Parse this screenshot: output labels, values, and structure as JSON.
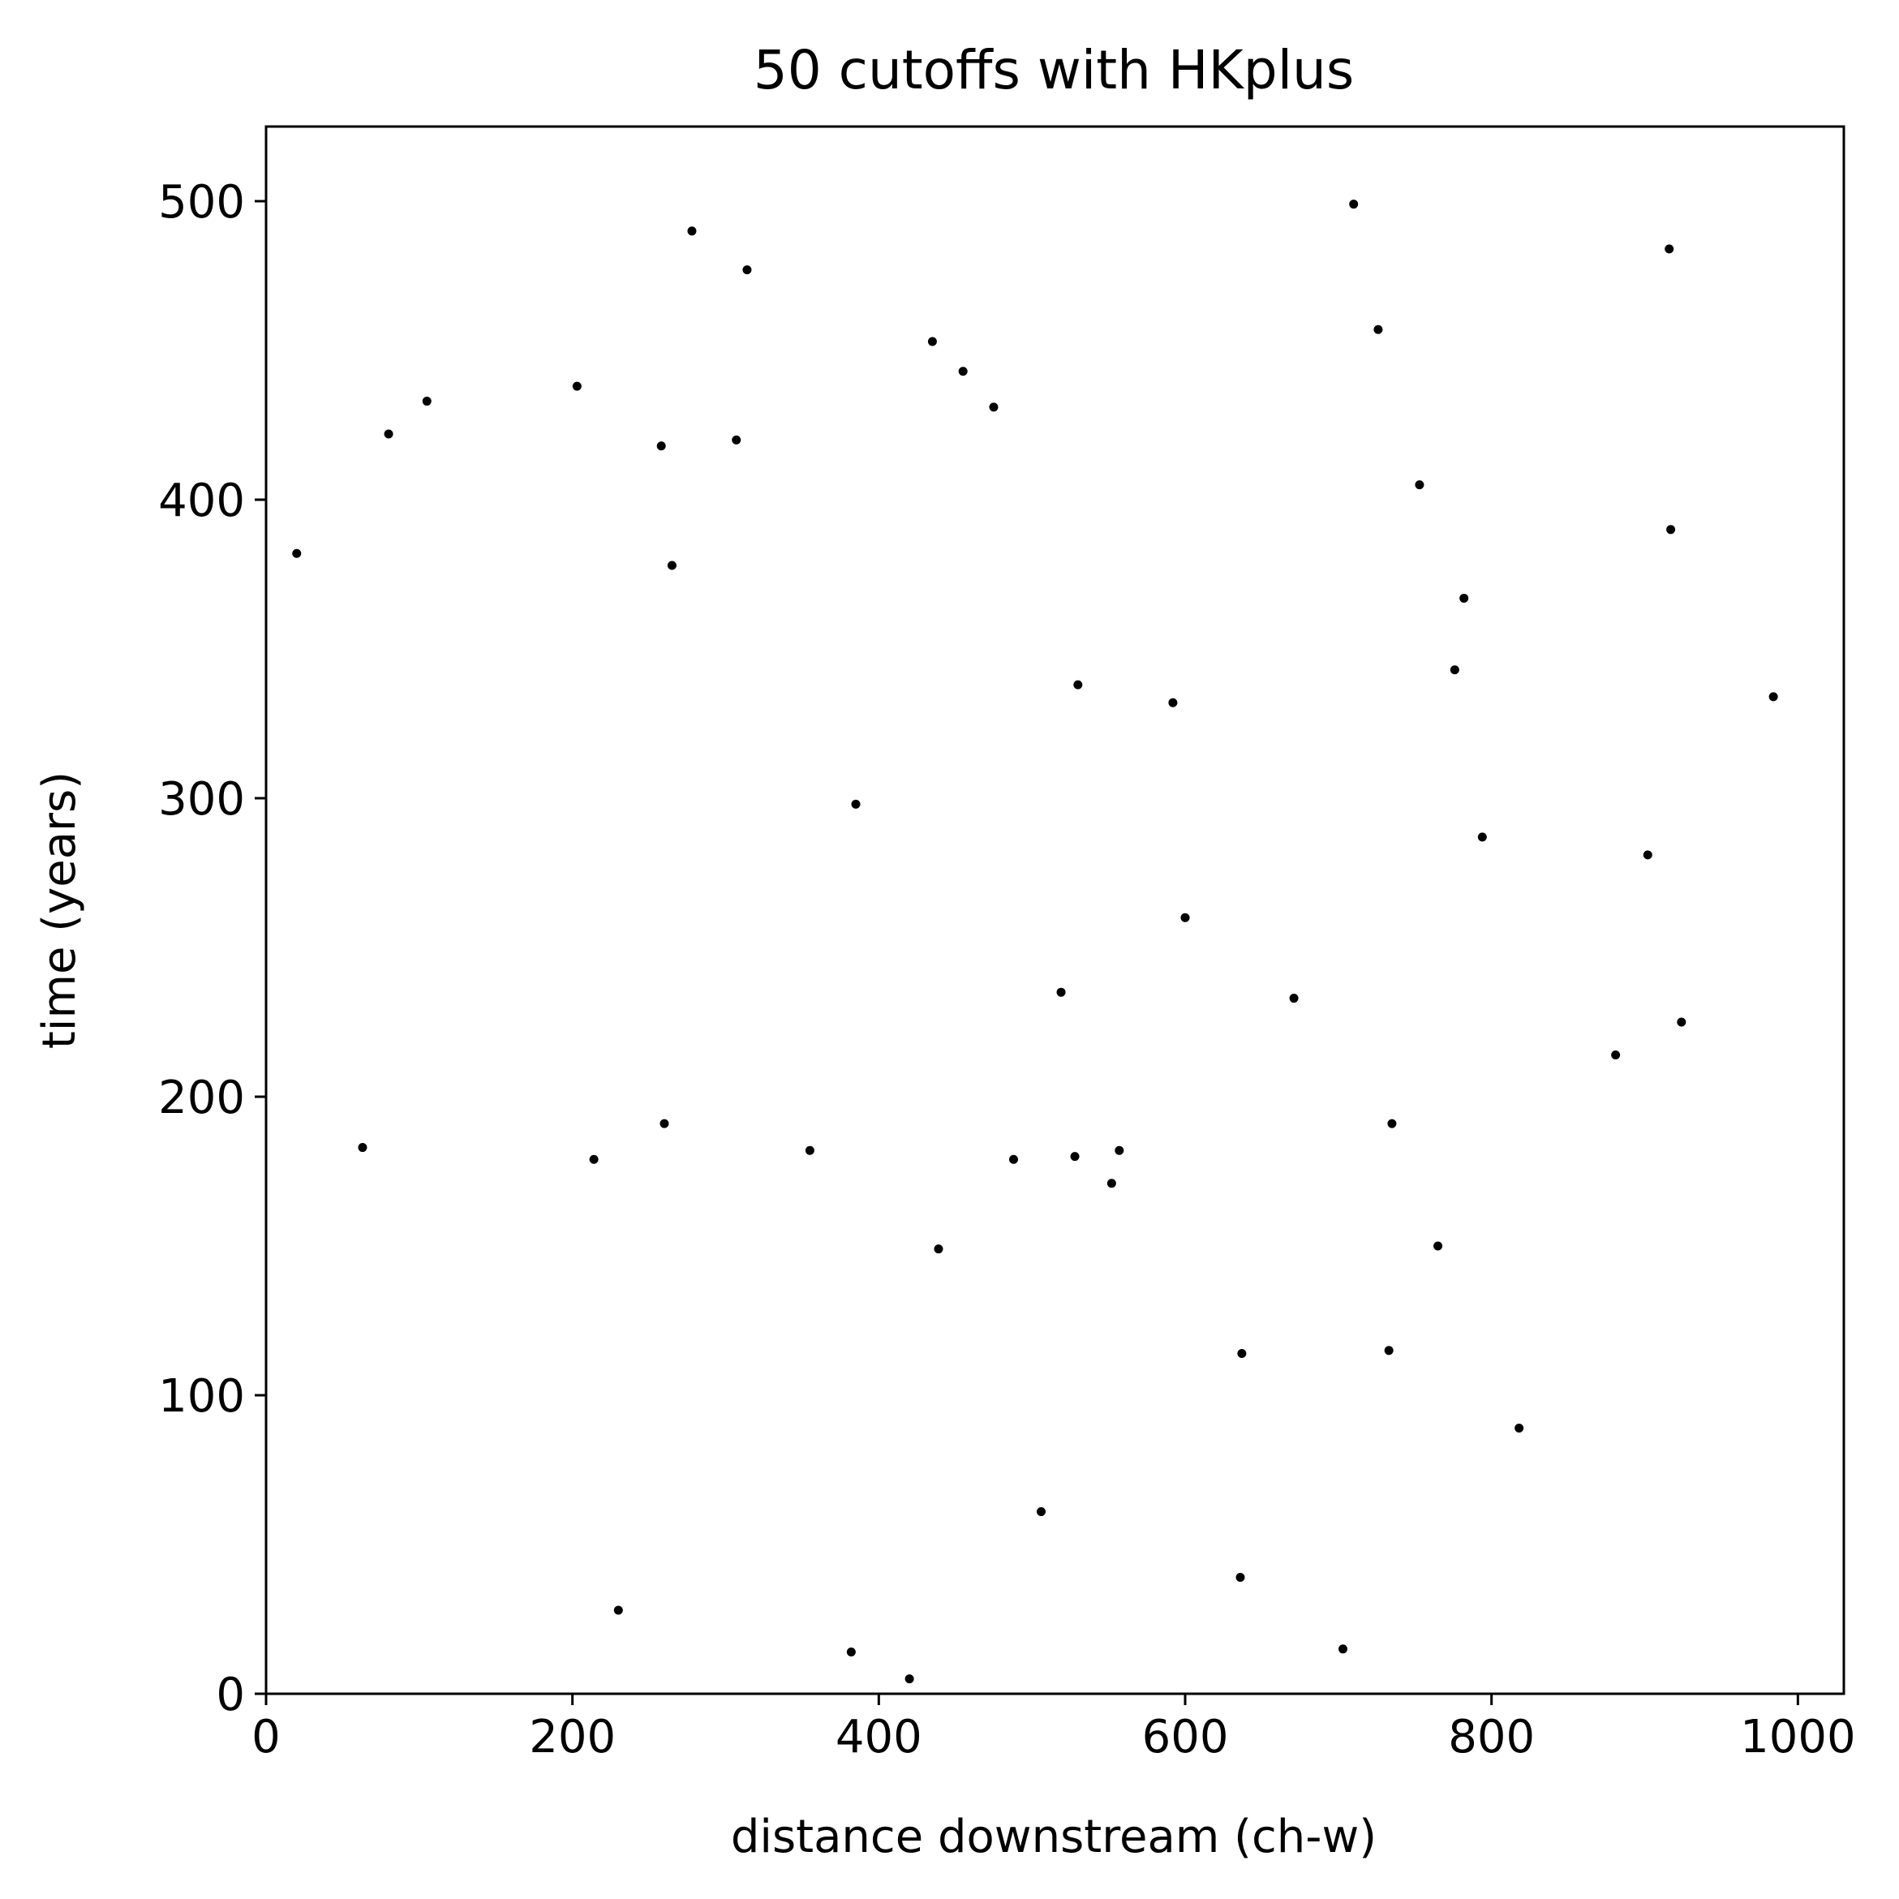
{
  "chart_data": {
    "type": "scatter",
    "title": "50 cutoffs with HKplus",
    "xlabel": "distance downstream (ch-w)",
    "ylabel": "time (years)",
    "xlim": [
      0,
      1030
    ],
    "ylim": [
      0,
      525
    ],
    "xticks": [
      0,
      200,
      400,
      600,
      800,
      1000
    ],
    "yticks": [
      0,
      100,
      200,
      300,
      400,
      500
    ],
    "grid": false,
    "marker_color": "#000000",
    "series": [
      {
        "x": [
          20,
          63,
          80,
          105,
          203,
          214,
          230,
          258,
          260,
          265,
          278,
          307,
          314,
          355,
          382,
          385,
          420,
          435,
          439,
          455,
          475,
          488,
          506,
          519,
          528,
          530,
          552,
          557,
          592,
          600,
          636,
          637,
          671,
          703,
          710,
          726,
          733,
          735,
          753,
          765,
          776,
          782,
          794,
          818,
          881,
          902,
          916,
          917,
          924,
          984
        ],
        "y": [
          382,
          183,
          422,
          433,
          438,
          179,
          28,
          418,
          191,
          378,
          490,
          420,
          477,
          182,
          14,
          298,
          5,
          453,
          149,
          443,
          431,
          179,
          61,
          235,
          180,
          338,
          171,
          182,
          332,
          260,
          39,
          114,
          233,
          15,
          499,
          457,
          115,
          191,
          405,
          150,
          343,
          367,
          287,
          89,
          214,
          281,
          484,
          390,
          225,
          334
        ]
      }
    ]
  }
}
